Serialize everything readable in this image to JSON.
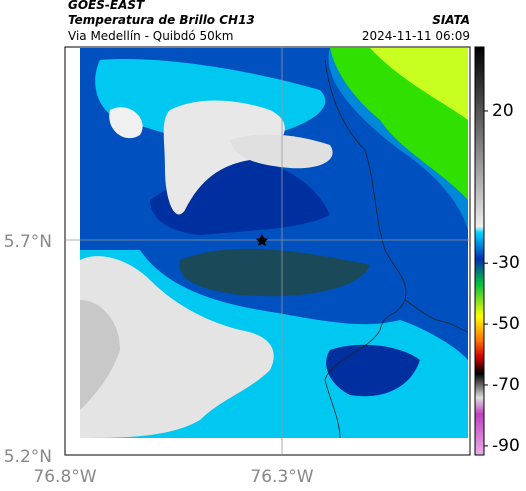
{
  "header": {
    "source": "GOES-EAST",
    "product": "Temperatura de Brillo CH13",
    "route": "Via Medellín - Quibdó 50km",
    "agency": "SIATA",
    "timestamp": "2024-11-11 06:09"
  },
  "map_axes": {
    "lat_labels": [
      "5.7°N",
      "5.2°N"
    ],
    "lon_labels": [
      "76.8°W",
      "76.3°W"
    ]
  },
  "colorbar": {
    "clim": [
      -93,
      41
    ],
    "ticks": [
      20,
      -30,
      -50,
      -70,
      -90
    ]
  }
}
